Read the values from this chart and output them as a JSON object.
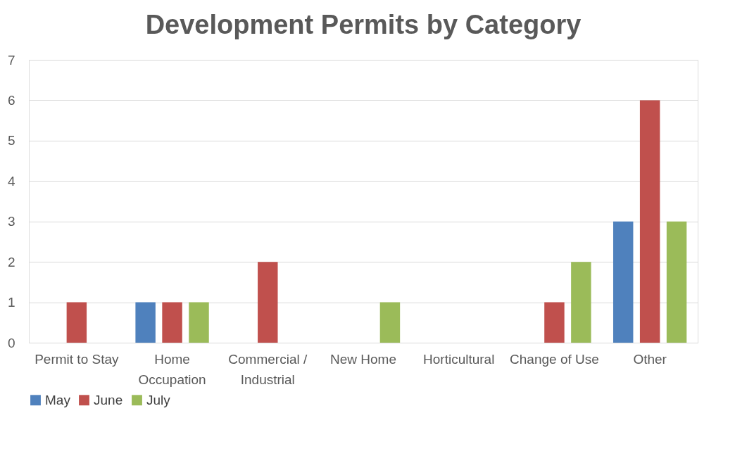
{
  "chart_data": {
    "type": "bar",
    "title": "Development Permits by Category",
    "categories": [
      "Permit to Stay",
      "Home Occupation",
      "Commercial / Industrial",
      "New Home",
      "Horticultural",
      "Change of Use",
      "Other"
    ],
    "series": [
      {
        "name": "May",
        "color": "#4f81bd",
        "values": [
          0,
          1,
          0,
          0,
          0,
          0,
          3
        ]
      },
      {
        "name": "June",
        "color": "#c0504d",
        "values": [
          1,
          1,
          2,
          0,
          0,
          1,
          6
        ]
      },
      {
        "name": "July",
        "color": "#9bbb59",
        "values": [
          0,
          1,
          0,
          1,
          0,
          2,
          3
        ]
      }
    ],
    "ylim": [
      0,
      7
    ],
    "yticks": [
      0,
      1,
      2,
      3,
      4,
      5,
      6,
      7
    ],
    "grid": "y",
    "legend": "bottom"
  }
}
